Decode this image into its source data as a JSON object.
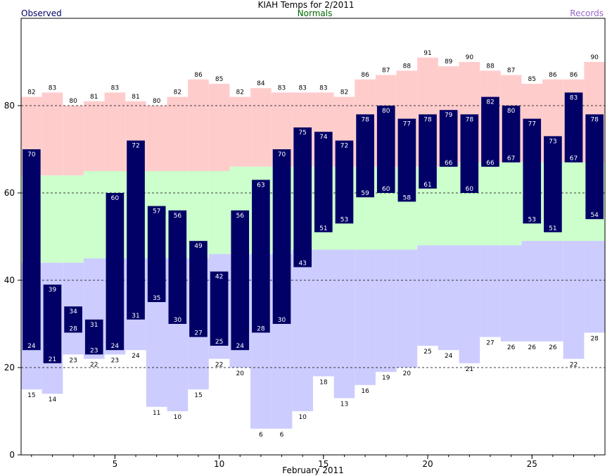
{
  "chart_data": {
    "type": "bar",
    "title": "KIAH Temps for 2/2011",
    "xlabel": "February 2011",
    "ylabel": "",
    "legend": [
      {
        "label": "Observed",
        "color": "#000066"
      },
      {
        "label": "Normals",
        "color": "#006600"
      },
      {
        "label": "Records",
        "color": "#9966cc"
      }
    ],
    "xlim": [
      0.5,
      28.5
    ],
    "ylim": [
      0,
      100
    ],
    "x_ticks": [
      5,
      10,
      15,
      20,
      25
    ],
    "y_ticks": [
      0,
      20,
      40,
      60,
      80
    ],
    "gridlines_y": [
      20,
      40,
      60,
      80
    ],
    "days": [
      1,
      2,
      3,
      4,
      5,
      6,
      7,
      8,
      9,
      10,
      11,
      12,
      13,
      14,
      15,
      16,
      17,
      18,
      19,
      20,
      21,
      22,
      23,
      24,
      25,
      26,
      27,
      28
    ],
    "series": [
      {
        "name": "Observed High",
        "values": [
          70,
          39,
          34,
          31,
          60,
          72,
          57,
          56,
          49,
          42,
          56,
          63,
          70,
          75,
          74,
          72,
          78,
          80,
          77,
          78,
          79,
          78,
          82,
          80,
          77,
          73,
          83,
          78
        ]
      },
      {
        "name": "Observed Low",
        "values": [
          24,
          21,
          28,
          23,
          24,
          31,
          35,
          30,
          27,
          25,
          24,
          28,
          30,
          43,
          51,
          53,
          59,
          60,
          58,
          61,
          66,
          60,
          66,
          67,
          53,
          51,
          67,
          54
        ]
      },
      {
        "name": "Record High",
        "values": [
          82,
          83,
          80,
          81,
          83,
          81,
          80,
          82,
          86,
          85,
          82,
          84,
          83,
          83,
          83,
          82,
          86,
          87,
          88,
          91,
          89,
          90,
          88,
          87,
          85,
          86,
          86,
          90
        ]
      },
      {
        "name": "Record Low",
        "values": [
          15,
          14,
          23,
          22,
          23,
          24,
          11,
          10,
          15,
          22,
          20,
          6,
          6,
          10,
          18,
          13,
          16,
          19,
          20,
          25,
          24,
          21,
          27,
          26,
          26,
          26,
          22,
          28
        ]
      },
      {
        "name": "Normal High",
        "values": [
          64,
          64,
          64,
          65,
          65,
          65,
          65,
          65,
          65,
          65,
          66,
          66,
          66,
          66,
          66,
          66,
          66,
          66,
          66,
          66,
          66,
          67,
          67,
          67,
          67,
          67,
          67,
          67
        ]
      },
      {
        "name": "Normal Low",
        "values": [
          44,
          44,
          44,
          45,
          45,
          45,
          45,
          45,
          45,
          46,
          46,
          46,
          46,
          47,
          47,
          47,
          47,
          47,
          47,
          48,
          48,
          48,
          48,
          48,
          49,
          49,
          49,
          49
        ]
      }
    ],
    "colors": {
      "record_band": "#ffcccc",
      "normal_band": "#ccffcc",
      "low_band": "#ccccff",
      "observed_bar": "#000066",
      "gridline": "#000000"
    }
  }
}
